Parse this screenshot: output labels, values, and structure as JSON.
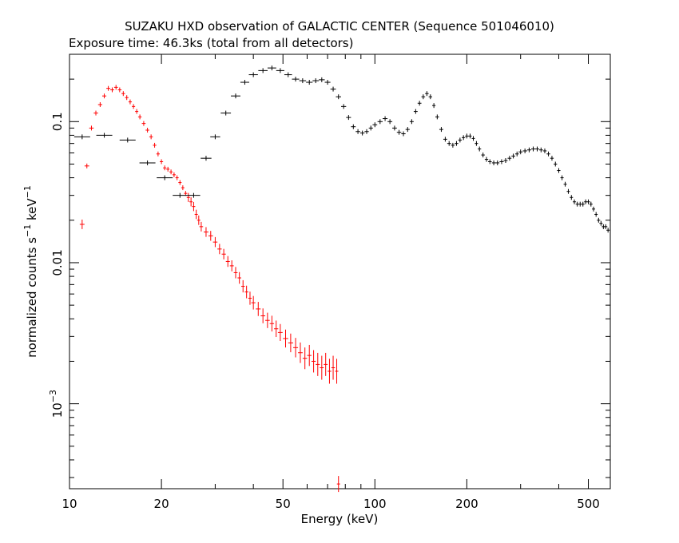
{
  "chart_data": {
    "type": "scatter",
    "title": "SUZAKU HXD observation of GALACTIC CENTER (Sequence 501046010)",
    "subtitle": "Exposure time: 46.3ks (total from all detectors)",
    "xlabel": "Energy (keV)",
    "ylabel": "normalized counts s",
    "ylabel_sup1": "−1",
    "ylabel_mid": " keV",
    "ylabel_sup2": "−1",
    "xscale": "log",
    "yscale": "log",
    "xlim": [
      10,
      590
    ],
    "ylim": [
      0.00025,
      0.3
    ],
    "x_ticks": [
      {
        "value": 10,
        "label": "10"
      },
      {
        "value": 20,
        "label": "20"
      },
      {
        "value": 50,
        "label": "50"
      },
      {
        "value": 100,
        "label": "100"
      },
      {
        "value": 200,
        "label": "200"
      },
      {
        "value": 500,
        "label": "500"
      }
    ],
    "y_ticks": [
      {
        "value": 0.1,
        "label": "0.1"
      },
      {
        "value": 0.01,
        "label": "0.01"
      },
      {
        "value": 0.001,
        "label": "10",
        "sup": "−3"
      }
    ],
    "grid": false,
    "series": [
      {
        "color": "#ff0000",
        "points": [
          {
            "x": 11.0,
            "y": 0.0187
          },
          {
            "x": 11.4,
            "y": 0.0485
          },
          {
            "x": 11.8,
            "y": 0.09
          },
          {
            "x": 12.2,
            "y": 0.115
          },
          {
            "x": 12.6,
            "y": 0.132
          },
          {
            "x": 13.0,
            "y": 0.152
          },
          {
            "x": 13.4,
            "y": 0.172
          },
          {
            "x": 13.8,
            "y": 0.168
          },
          {
            "x": 14.2,
            "y": 0.175
          },
          {
            "x": 14.6,
            "y": 0.168
          },
          {
            "x": 15.0,
            "y": 0.158
          },
          {
            "x": 15.4,
            "y": 0.148
          },
          {
            "x": 15.8,
            "y": 0.138
          },
          {
            "x": 16.2,
            "y": 0.128
          },
          {
            "x": 16.6,
            "y": 0.118
          },
          {
            "x": 17.0,
            "y": 0.108
          },
          {
            "x": 17.5,
            "y": 0.097
          },
          {
            "x": 18.0,
            "y": 0.087
          },
          {
            "x": 18.5,
            "y": 0.078
          },
          {
            "x": 19.0,
            "y": 0.068
          },
          {
            "x": 19.5,
            "y": 0.059
          },
          {
            "x": 20.0,
            "y": 0.052
          },
          {
            "x": 20.5,
            "y": 0.047
          },
          {
            "x": 21.0,
            "y": 0.046
          },
          {
            "x": 21.5,
            "y": 0.044
          },
          {
            "x": 22.0,
            "y": 0.042
          },
          {
            "x": 22.5,
            "y": 0.04
          },
          {
            "x": 23.0,
            "y": 0.037
          },
          {
            "x": 23.5,
            "y": 0.034
          },
          {
            "x": 24.0,
            "y": 0.031
          },
          {
            "x": 24.5,
            "y": 0.029
          },
          {
            "x": 25.0,
            "y": 0.027
          },
          {
            "x": 25.5,
            "y": 0.025
          },
          {
            "x": 26.0,
            "y": 0.022
          },
          {
            "x": 26.5,
            "y": 0.02
          },
          {
            "x": 27.0,
            "y": 0.018
          },
          {
            "x": 28.0,
            "y": 0.0165
          },
          {
            "x": 29.0,
            "y": 0.0155
          },
          {
            "x": 30.0,
            "y": 0.014
          },
          {
            "x": 31.0,
            "y": 0.0125
          },
          {
            "x": 32.0,
            "y": 0.0115
          },
          {
            "x": 33.0,
            "y": 0.0102
          },
          {
            "x": 34.0,
            "y": 0.0095
          },
          {
            "x": 35.0,
            "y": 0.0085
          },
          {
            "x": 36.0,
            "y": 0.0078
          },
          {
            "x": 37.0,
            "y": 0.0068
          },
          {
            "x": 38.0,
            "y": 0.0062
          },
          {
            "x": 39.0,
            "y": 0.0056
          },
          {
            "x": 40.0,
            "y": 0.0052
          },
          {
            "x": 41.5,
            "y": 0.0047
          },
          {
            "x": 43.0,
            "y": 0.0042
          },
          {
            "x": 44.5,
            "y": 0.0039
          },
          {
            "x": 46.0,
            "y": 0.0037
          },
          {
            "x": 47.5,
            "y": 0.0034
          },
          {
            "x": 49.0,
            "y": 0.0032
          },
          {
            "x": 51.0,
            "y": 0.0029
          },
          {
            "x": 53.0,
            "y": 0.0027
          },
          {
            "x": 55.0,
            "y": 0.0025
          },
          {
            "x": 57.0,
            "y": 0.0023
          },
          {
            "x": 59.0,
            "y": 0.0021
          },
          {
            "x": 61.0,
            "y": 0.0022
          },
          {
            "x": 63.0,
            "y": 0.002
          },
          {
            "x": 65.0,
            "y": 0.0019
          },
          {
            "x": 67.0,
            "y": 0.0018
          },
          {
            "x": 69.0,
            "y": 0.0019
          },
          {
            "x": 71.0,
            "y": 0.0017
          },
          {
            "x": 73.0,
            "y": 0.0018
          },
          {
            "x": 75.0,
            "y": 0.0017
          },
          {
            "x": 76.0,
            "y": 0.00027
          }
        ]
      },
      {
        "color": "#000000",
        "points": [
          {
            "x": 11.0,
            "y": 0.078
          },
          {
            "x": 13.0,
            "y": 0.08
          },
          {
            "x": 15.5,
            "y": 0.074
          },
          {
            "x": 18.0,
            "y": 0.051
          },
          {
            "x": 20.5,
            "y": 0.04
          },
          {
            "x": 23.0,
            "y": 0.03
          },
          {
            "x": 25.5,
            "y": 0.03
          },
          {
            "x": 28.0,
            "y": 0.055
          },
          {
            "x": 30.0,
            "y": 0.078
          },
          {
            "x": 32.5,
            "y": 0.115
          },
          {
            "x": 35.0,
            "y": 0.152
          },
          {
            "x": 37.5,
            "y": 0.19
          },
          {
            "x": 40.0,
            "y": 0.215
          },
          {
            "x": 43.0,
            "y": 0.23
          },
          {
            "x": 46.0,
            "y": 0.24
          },
          {
            "x": 49.0,
            "y": 0.23
          },
          {
            "x": 52.0,
            "y": 0.215
          },
          {
            "x": 55.0,
            "y": 0.2
          },
          {
            "x": 58.0,
            "y": 0.195
          },
          {
            "x": 61.0,
            "y": 0.19
          },
          {
            "x": 64.0,
            "y": 0.195
          },
          {
            "x": 67.0,
            "y": 0.198
          },
          {
            "x": 70.0,
            "y": 0.19
          },
          {
            "x": 73.0,
            "y": 0.17
          },
          {
            "x": 76.0,
            "y": 0.15
          },
          {
            "x": 79.0,
            "y": 0.128
          },
          {
            "x": 82.0,
            "y": 0.107
          },
          {
            "x": 85.0,
            "y": 0.092
          },
          {
            "x": 88.0,
            "y": 0.085
          },
          {
            "x": 91.0,
            "y": 0.083
          },
          {
            "x": 94.0,
            "y": 0.085
          },
          {
            "x": 97.0,
            "y": 0.09
          },
          {
            "x": 100.0,
            "y": 0.095
          },
          {
            "x": 104.0,
            "y": 0.1
          },
          {
            "x": 108.0,
            "y": 0.105
          },
          {
            "x": 112.0,
            "y": 0.1
          },
          {
            "x": 116.0,
            "y": 0.09
          },
          {
            "x": 120.0,
            "y": 0.084
          },
          {
            "x": 124.0,
            "y": 0.082
          },
          {
            "x": 128.0,
            "y": 0.088
          },
          {
            "x": 132.0,
            "y": 0.1
          },
          {
            "x": 136.0,
            "y": 0.118
          },
          {
            "x": 140.0,
            "y": 0.135
          },
          {
            "x": 144.0,
            "y": 0.15
          },
          {
            "x": 148.0,
            "y": 0.158
          },
          {
            "x": 152.0,
            "y": 0.15
          },
          {
            "x": 156.0,
            "y": 0.13
          },
          {
            "x": 160.0,
            "y": 0.108
          },
          {
            "x": 165.0,
            "y": 0.088
          },
          {
            "x": 170.0,
            "y": 0.075
          },
          {
            "x": 175.0,
            "y": 0.07
          },
          {
            "x": 180.0,
            "y": 0.068
          },
          {
            "x": 185.0,
            "y": 0.07
          },
          {
            "x": 190.0,
            "y": 0.074
          },
          {
            "x": 195.0,
            "y": 0.077
          },
          {
            "x": 200.0,
            "y": 0.079
          },
          {
            "x": 205.0,
            "y": 0.079
          },
          {
            "x": 210.0,
            "y": 0.076
          },
          {
            "x": 215.0,
            "y": 0.07
          },
          {
            "x": 220.0,
            "y": 0.064
          },
          {
            "x": 226.0,
            "y": 0.058
          },
          {
            "x": 232.0,
            "y": 0.054
          },
          {
            "x": 238.0,
            "y": 0.052
          },
          {
            "x": 245.0,
            "y": 0.051
          },
          {
            "x": 252.0,
            "y": 0.051
          },
          {
            "x": 260.0,
            "y": 0.052
          },
          {
            "x": 268.0,
            "y": 0.053
          },
          {
            "x": 276.0,
            "y": 0.055
          },
          {
            "x": 284.0,
            "y": 0.057
          },
          {
            "x": 292.0,
            "y": 0.059
          },
          {
            "x": 300.0,
            "y": 0.061
          },
          {
            "x": 310.0,
            "y": 0.062
          },
          {
            "x": 320.0,
            "y": 0.063
          },
          {
            "x": 330.0,
            "y": 0.064
          },
          {
            "x": 340.0,
            "y": 0.064
          },
          {
            "x": 350.0,
            "y": 0.063
          },
          {
            "x": 360.0,
            "y": 0.062
          },
          {
            "x": 370.0,
            "y": 0.059
          },
          {
            "x": 380.0,
            "y": 0.055
          },
          {
            "x": 390.0,
            "y": 0.05
          },
          {
            "x": 400.0,
            "y": 0.045
          },
          {
            "x": 410.0,
            "y": 0.04
          },
          {
            "x": 420.0,
            "y": 0.036
          },
          {
            "x": 430.0,
            "y": 0.032
          },
          {
            "x": 440.0,
            "y": 0.029
          },
          {
            "x": 450.0,
            "y": 0.027
          },
          {
            "x": 460.0,
            "y": 0.026
          },
          {
            "x": 470.0,
            "y": 0.026
          },
          {
            "x": 480.0,
            "y": 0.026
          },
          {
            "x": 490.0,
            "y": 0.027
          },
          {
            "x": 500.0,
            "y": 0.027
          },
          {
            "x": 510.0,
            "y": 0.026
          },
          {
            "x": 520.0,
            "y": 0.024
          },
          {
            "x": 530.0,
            "y": 0.022
          },
          {
            "x": 540.0,
            "y": 0.02
          },
          {
            "x": 550.0,
            "y": 0.019
          },
          {
            "x": 560.0,
            "y": 0.018
          },
          {
            "x": 570.0,
            "y": 0.018
          },
          {
            "x": 580.0,
            "y": 0.017
          }
        ]
      }
    ]
  }
}
